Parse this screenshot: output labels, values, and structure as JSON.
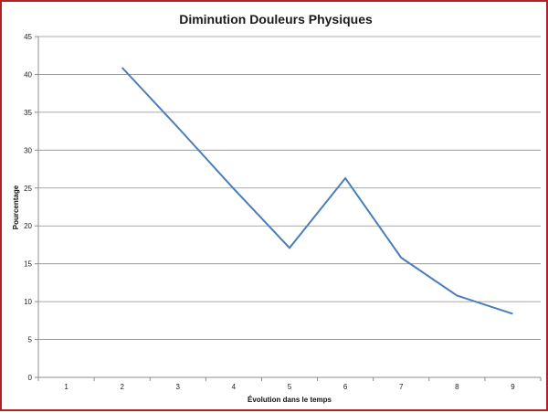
{
  "chart_data": {
    "type": "line",
    "title": "Diminution Douleurs Physiques",
    "xlabel": "Évolution  dans le temps",
    "ylabel": "Pourcentage",
    "categories": [
      "1",
      "2",
      "3",
      "4",
      "5",
      "6",
      "7",
      "8",
      "9"
    ],
    "series": [
      {
        "values": [
          null,
          40.9,
          33.0,
          24.9,
          17.1,
          26.3,
          15.8,
          10.8,
          8.4
        ],
        "color": "#4a7ebb"
      }
    ],
    "ylim": [
      0,
      45
    ],
    "yticks": [
      "0",
      "5",
      "10",
      "15",
      "20",
      "25",
      "30",
      "35",
      "40",
      "45"
    ],
    "grid": true,
    "legend": "none"
  }
}
